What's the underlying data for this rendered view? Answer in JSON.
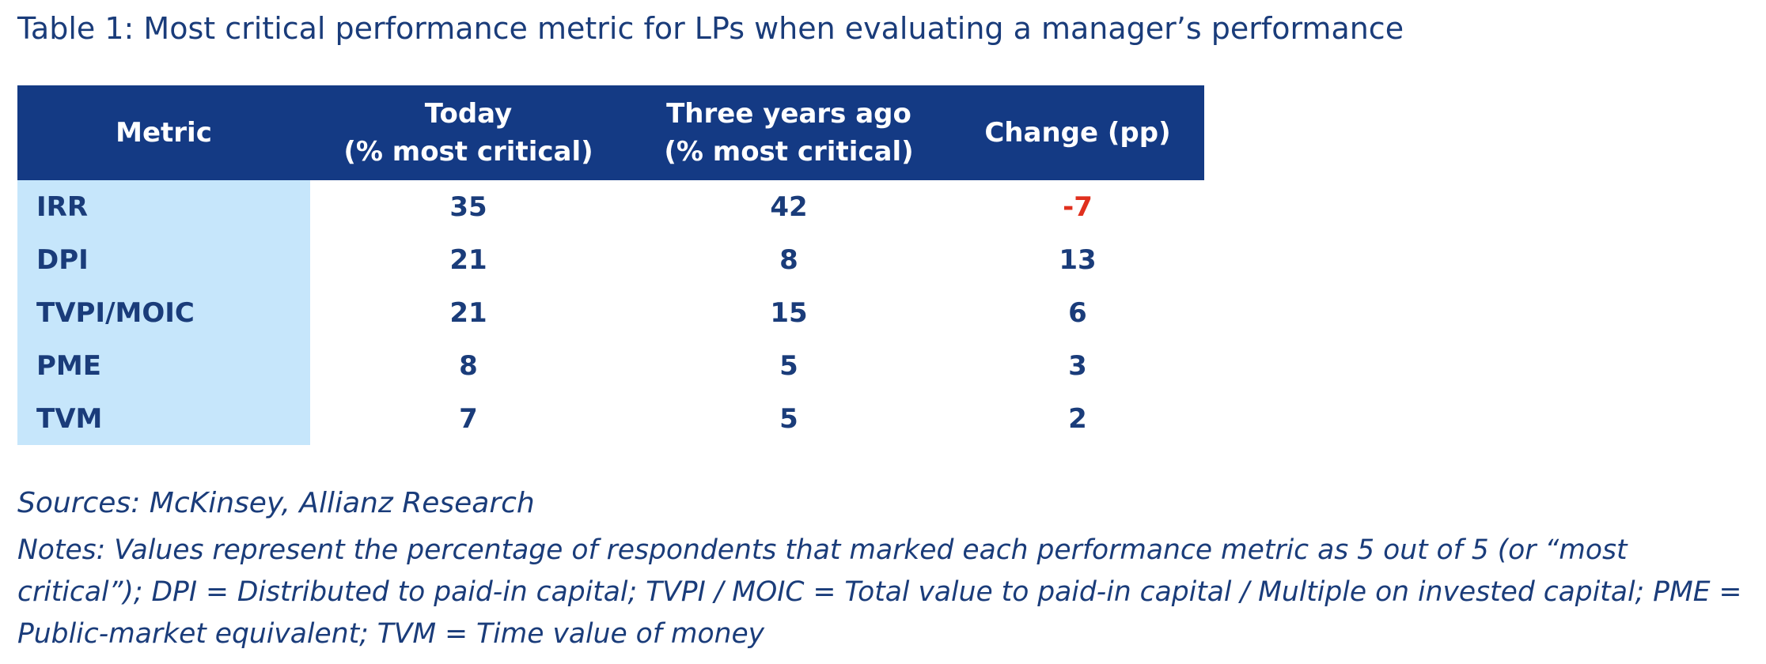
{
  "title": "Table 1: Most critical performance metric for LPs when evaluating a manager’s performance",
  "table": {
    "headers": [
      {
        "line1": "Metric",
        "line2": ""
      },
      {
        "line1": "Today",
        "line2": "(% most critical)"
      },
      {
        "line1": "Three years ago",
        "line2": "(% most critical)"
      },
      {
        "line1": "Change (pp)",
        "line2": ""
      }
    ],
    "rows": [
      {
        "metric": "IRR",
        "today": "35",
        "three_years_ago": "42",
        "change": "-7"
      },
      {
        "metric": "DPI",
        "today": "21",
        "three_years_ago": "8",
        "change": "13"
      },
      {
        "metric": "TVPI/MOIC",
        "today": "21",
        "three_years_ago": "15",
        "change": "6"
      },
      {
        "metric": "PME",
        "today": "8",
        "three_years_ago": "5",
        "change": "3"
      },
      {
        "metric": "TVM",
        "today": "7",
        "three_years_ago": "5",
        "change": "2"
      }
    ]
  },
  "sources": "Sources: McKinsey, Allianz Research",
  "notes": "Notes: Values represent the percentage of respondents that marked each performance metric as 5 out of 5 (or “most critical”); DPI = Distributed to paid-in capital; TVPI / MOIC = Total value to paid-in capital / Multiple on invested capital; PME = Public-market equivalent; TVM = Time value of money",
  "colors": {
    "header_bg": "#143a84",
    "metric_col_bg": "#c6e6fb",
    "text": "#1a3c7a",
    "negative": "#e0301e"
  }
}
